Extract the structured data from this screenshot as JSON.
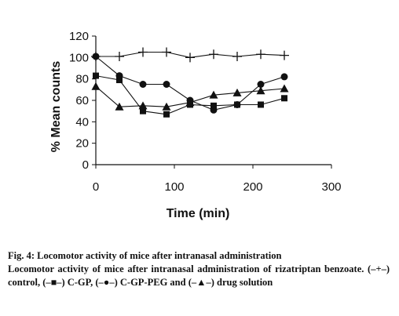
{
  "chart_data": {
    "type": "line",
    "xlabel": "Time (min)",
    "ylabel": "% Mean counts",
    "xlim": [
      0,
      300
    ],
    "ylim": [
      0,
      120
    ],
    "xticks": [
      0,
      100,
      200,
      300
    ],
    "yticks": [
      0,
      20,
      40,
      60,
      80,
      100,
      120
    ],
    "grid": false,
    "legend": "none",
    "series": [
      {
        "marker": "plus",
        "x": [
          0,
          30,
          60,
          90,
          120,
          150,
          180,
          210,
          240
        ],
        "y": [
          101,
          101,
          105,
          105,
          100,
          103,
          101,
          103,
          102
        ]
      },
      {
        "marker": "square",
        "x": [
          0,
          30,
          60,
          90,
          120,
          150,
          180,
          210,
          240
        ],
        "y": [
          83,
          79,
          50,
          47,
          56,
          55,
          56,
          56,
          62
        ]
      },
      {
        "marker": "circle",
        "x": [
          0,
          30,
          60,
          90,
          120,
          150,
          180,
          210,
          240
        ],
        "y": [
          101,
          83,
          75,
          75,
          60,
          51,
          56,
          75,
          82
        ]
      },
      {
        "marker": "triangle",
        "x": [
          0,
          30,
          60,
          90,
          120,
          150,
          180,
          210,
          240
        ],
        "y": [
          73,
          54,
          55,
          54,
          58,
          65,
          67,
          69,
          71
        ]
      }
    ]
  },
  "caption": {
    "title": "Fig. 4: Locomotor activity of mice after intranasal administration",
    "body_start": "Locomotor activity of mice after intranasal administration of rizatriptan benzoate. (",
    "legend_control": "–+–",
    "text_control": ") control, (",
    "legend_cgp": "–■–",
    "text_cgp": ") C-GP, (",
    "legend_cgppeg": "–●–",
    "text_cgppeg": ") C-GP-PEG and (",
    "legend_drug": "–▲–",
    "text_drug": ") drug solution"
  }
}
